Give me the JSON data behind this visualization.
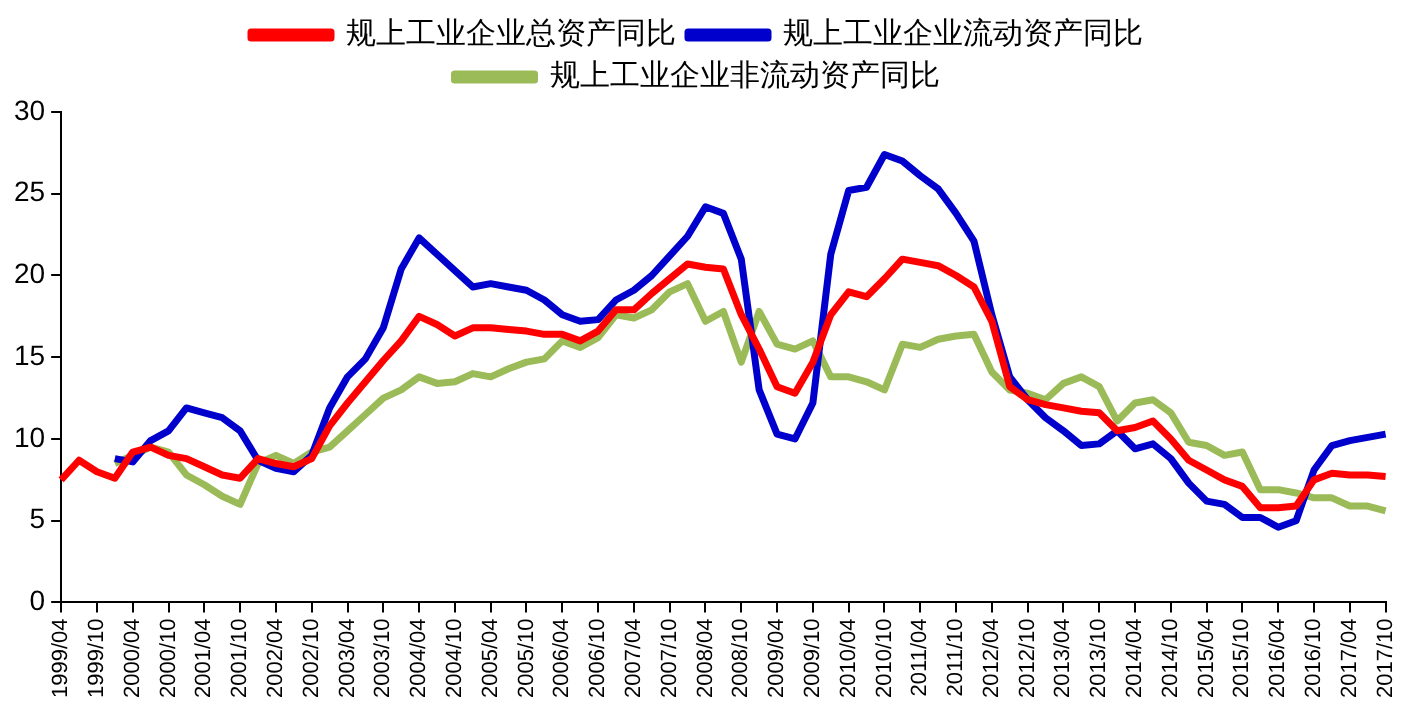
{
  "chart_data": {
    "type": "line",
    "categories": [
      "1999/04",
      null,
      "1999/10",
      null,
      "2000/04",
      null,
      "2000/10",
      null,
      "2001/04",
      null,
      "2001/10",
      null,
      "2002/04",
      null,
      "2002/10",
      null,
      "2003/04",
      null,
      "2003/10",
      null,
      "2004/04",
      null,
      "2004/10",
      null,
      "2005/04",
      null,
      "2005/10",
      null,
      "2006/04",
      null,
      "2006/10",
      null,
      "2007/04",
      null,
      "2007/10",
      null,
      "2008/04",
      null,
      "2008/10",
      null,
      "2009/04",
      null,
      "2009/10",
      null,
      "2010/04",
      null,
      "2010/10",
      null,
      "2011/04",
      null,
      "2011/10",
      null,
      "2012/04",
      null,
      "2012/10",
      null,
      "2013/04",
      null,
      "2013/10",
      null,
      "2014/04",
      null,
      "2014/10",
      null,
      "2015/04",
      null,
      "2015/10",
      null,
      "2016/04",
      null,
      "2016/10",
      null,
      "2017/04",
      null,
      "2017/10"
    ],
    "series": [
      {
        "name": "规上工业企业总资产同比",
        "color": "#ff0000",
        "values": [
          7.5,
          8.7,
          8.0,
          7.6,
          9.2,
          9.5,
          9.0,
          8.8,
          8.3,
          7.8,
          7.6,
          8.8,
          8.5,
          8.3,
          8.8,
          10.8,
          12.2,
          13.5,
          14.8,
          16.0,
          17.5,
          17.0,
          16.3,
          16.8,
          16.8,
          16.7,
          16.6,
          16.4,
          16.4,
          16.0,
          16.6,
          17.9,
          17.9,
          18.9,
          19.8,
          20.7,
          20.5,
          20.4,
          17.6,
          15.5,
          13.2,
          12.8,
          14.7,
          17.6,
          19.0,
          18.7,
          19.8,
          21.0,
          20.8,
          20.6,
          20.0,
          19.3,
          17.2,
          13.2,
          12.4,
          12.1,
          11.9,
          11.7,
          11.6,
          10.5,
          10.7,
          11.1,
          10.0,
          8.7,
          8.1,
          7.5,
          7.1,
          5.8,
          5.8,
          5.9,
          7.5,
          7.9,
          7.8,
          7.8,
          7.7
        ]
      },
      {
        "name": "规上工业企业流动资产同比",
        "color": "#0000cc",
        "values": [
          null,
          null,
          null,
          8.8,
          8.6,
          9.9,
          10.5,
          11.9,
          11.6,
          11.3,
          10.5,
          8.7,
          8.2,
          8.0,
          9.0,
          11.9,
          13.8,
          14.9,
          16.8,
          20.4,
          22.3,
          21.3,
          20.3,
          19.3,
          19.5,
          19.3,
          19.1,
          18.5,
          17.6,
          17.2,
          17.3,
          18.5,
          19.1,
          20.0,
          21.2,
          22.4,
          24.2,
          23.8,
          21.0,
          13.0,
          10.3,
          10.0,
          12.2,
          21.3,
          25.2,
          25.4,
          27.4,
          27.0,
          26.1,
          25.3,
          23.8,
          22.1,
          17.6,
          13.8,
          12.4,
          11.3,
          10.5,
          9.6,
          9.7,
          10.5,
          9.4,
          9.7,
          8.8,
          7.3,
          6.2,
          6.0,
          5.2,
          5.2,
          4.6,
          5.0,
          8.1,
          9.6,
          9.9,
          10.1,
          10.3
        ]
      },
      {
        "name": "规上工业企业非流动资产同比",
        "color": "#9bbb59",
        "values": [
          null,
          null,
          null,
          8.5,
          9.0,
          9.5,
          9.2,
          7.8,
          7.2,
          6.5,
          6.0,
          8.5,
          9.0,
          8.5,
          9.2,
          9.5,
          10.5,
          11.5,
          12.5,
          13.0,
          13.8,
          13.4,
          13.5,
          14.0,
          13.8,
          14.3,
          14.7,
          14.9,
          16.0,
          15.6,
          16.2,
          17.6,
          17.4,
          17.9,
          19.0,
          19.5,
          17.2,
          17.8,
          14.7,
          17.8,
          15.8,
          15.5,
          16.0,
          13.8,
          13.8,
          13.5,
          13.0,
          15.8,
          15.6,
          16.1,
          16.3,
          16.4,
          14.1,
          13.0,
          12.8,
          12.4,
          13.4,
          13.8,
          13.2,
          11.1,
          12.2,
          12.4,
          11.6,
          9.8,
          9.6,
          9.0,
          9.2,
          6.9,
          6.9,
          6.7,
          6.4,
          6.4,
          5.9,
          5.9,
          5.6
        ]
      }
    ],
    "ylim": [
      0,
      30
    ],
    "yticks": [
      0,
      5,
      10,
      15,
      20,
      25,
      30
    ],
    "grid": false,
    "legend": "top",
    "marker": "none",
    "line_style": "solid"
  }
}
